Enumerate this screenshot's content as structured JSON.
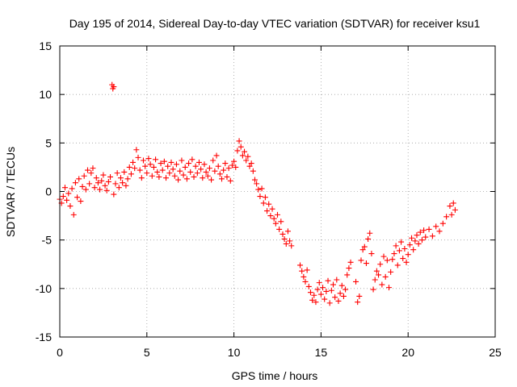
{
  "chart_data": {
    "type": "scatter",
    "title": "Day 195 of 2014, Sidereal Day-to-day VTEC variation (SDTVAR) for receiver ksu1",
    "xlabel": "GPS time / hours",
    "ylabel": "SDTVAR / TECUs",
    "xlim": [
      0,
      25
    ],
    "ylim": [
      -15,
      15
    ],
    "x_ticks": [
      "0",
      "5",
      "10",
      "15",
      "20",
      "25"
    ],
    "y_ticks": [
      "-15",
      "-10",
      "-5",
      "0",
      "5",
      "10",
      "15"
    ],
    "grid": true,
    "marker": "+",
    "color": "#ff0000",
    "series": [
      {
        "name": "SDTVAR",
        "points": [
          [
            0.0,
            -0.8
          ],
          [
            0.1,
            -1.2
          ],
          [
            0.2,
            -0.5
          ],
          [
            0.3,
            0.4
          ],
          [
            0.4,
            -0.9
          ],
          [
            0.5,
            -0.2
          ],
          [
            0.6,
            -1.5
          ],
          [
            0.7,
            0.3
          ],
          [
            0.8,
            -2.4
          ],
          [
            0.9,
            0.9
          ],
          [
            1.0,
            -0.6
          ],
          [
            1.1,
            1.3
          ],
          [
            1.2,
            -1.0
          ],
          [
            1.3,
            0.5
          ],
          [
            1.4,
            1.6
          ],
          [
            1.5,
            0.2
          ],
          [
            1.6,
            2.2
          ],
          [
            1.7,
            0.8
          ],
          [
            1.8,
            1.9
          ],
          [
            1.9,
            2.4
          ],
          [
            2.0,
            0.4
          ],
          [
            2.1,
            1.4
          ],
          [
            2.2,
            0.9
          ],
          [
            2.3,
            0.2
          ],
          [
            2.4,
            1.1
          ],
          [
            2.5,
            1.7
          ],
          [
            2.6,
            0.6
          ],
          [
            2.7,
            0.1
          ],
          [
            2.8,
            1.0
          ],
          [
            2.9,
            1.5
          ],
          [
            3.0,
            11.0
          ],
          [
            3.05,
            10.6
          ],
          [
            3.1,
            10.8
          ],
          [
            3.1,
            -0.3
          ],
          [
            3.2,
            0.8
          ],
          [
            3.3,
            1.9
          ],
          [
            3.4,
            0.4
          ],
          [
            3.5,
            1.4
          ],
          [
            3.6,
            0.9
          ],
          [
            3.7,
            2.0
          ],
          [
            3.8,
            0.6
          ],
          [
            3.9,
            1.3
          ],
          [
            4.0,
            2.5
          ],
          [
            4.1,
            1.8
          ],
          [
            4.2,
            3.0
          ],
          [
            4.3,
            2.4
          ],
          [
            4.4,
            4.3
          ],
          [
            4.5,
            3.5
          ],
          [
            4.6,
            2.2
          ],
          [
            4.7,
            1.4
          ],
          [
            4.8,
            3.2
          ],
          [
            4.9,
            2.6
          ],
          [
            5.0,
            1.9
          ],
          [
            5.1,
            3.4
          ],
          [
            5.2,
            2.8
          ],
          [
            5.3,
            1.6
          ],
          [
            5.4,
            2.5
          ],
          [
            5.5,
            3.3
          ],
          [
            5.6,
            2.0
          ],
          [
            5.7,
            1.5
          ],
          [
            5.8,
            2.9
          ],
          [
            5.9,
            2.2
          ],
          [
            6.0,
            3.1
          ],
          [
            6.1,
            1.4
          ],
          [
            6.2,
            2.6
          ],
          [
            6.3,
            1.9
          ],
          [
            6.4,
            3.0
          ],
          [
            6.5,
            2.3
          ],
          [
            6.6,
            1.6
          ],
          [
            6.7,
            2.8
          ],
          [
            6.8,
            1.2
          ],
          [
            6.9,
            2.1
          ],
          [
            7.0,
            3.2
          ],
          [
            7.1,
            1.7
          ],
          [
            7.2,
            2.5
          ],
          [
            7.3,
            1.3
          ],
          [
            7.4,
            2.9
          ],
          [
            7.5,
            2.0
          ],
          [
            7.6,
            3.3
          ],
          [
            7.7,
            1.5
          ],
          [
            7.8,
            2.6
          ],
          [
            7.9,
            1.9
          ],
          [
            8.0,
            3.0
          ],
          [
            8.1,
            2.3
          ],
          [
            8.2,
            1.4
          ],
          [
            8.3,
            2.8
          ],
          [
            8.4,
            2.0
          ],
          [
            8.5,
            1.6
          ],
          [
            8.6,
            2.4
          ],
          [
            8.7,
            1.2
          ],
          [
            8.8,
            3.2
          ],
          [
            8.9,
            2.1
          ],
          [
            9.0,
            3.7
          ],
          [
            9.1,
            2.6
          ],
          [
            9.2,
            1.8
          ],
          [
            9.3,
            1.3
          ],
          [
            9.4,
            2.2
          ],
          [
            9.5,
            2.9
          ],
          [
            9.6,
            1.5
          ],
          [
            9.7,
            2.4
          ],
          [
            9.8,
            1.1
          ],
          [
            9.9,
            2.7
          ],
          [
            10.0,
            3.1
          ],
          [
            10.1,
            2.5
          ],
          [
            10.2,
            4.2
          ],
          [
            10.3,
            5.2
          ],
          [
            10.4,
            4.6
          ],
          [
            10.5,
            3.7
          ],
          [
            10.6,
            4.1
          ],
          [
            10.7,
            3.2
          ],
          [
            10.8,
            3.6
          ],
          [
            10.9,
            2.6
          ],
          [
            11.0,
            2.9
          ],
          [
            11.1,
            2.1
          ],
          [
            11.2,
            1.2
          ],
          [
            11.3,
            0.8
          ],
          [
            11.4,
            0.2
          ],
          [
            11.5,
            -0.5
          ],
          [
            11.6,
            0.3
          ],
          [
            11.7,
            -1.2
          ],
          [
            11.8,
            -0.6
          ],
          [
            11.9,
            -2.0
          ],
          [
            12.0,
            -1.3
          ],
          [
            12.1,
            -2.5
          ],
          [
            12.2,
            -1.8
          ],
          [
            12.3,
            -2.8
          ],
          [
            12.4,
            -3.3
          ],
          [
            12.5,
            -2.4
          ],
          [
            12.6,
            -3.9
          ],
          [
            12.7,
            -3.1
          ],
          [
            12.8,
            -4.4
          ],
          [
            12.9,
            -4.9
          ],
          [
            13.0,
            -5.4
          ],
          [
            13.1,
            -4.1
          ],
          [
            13.2,
            -5.1
          ],
          [
            13.3,
            -5.6
          ],
          [
            13.8,
            -7.6
          ],
          [
            13.9,
            -8.2
          ],
          [
            14.0,
            -8.8
          ],
          [
            14.1,
            -9.3
          ],
          [
            14.2,
            -8.1
          ],
          [
            14.3,
            -9.8
          ],
          [
            14.4,
            -10.4
          ],
          [
            14.5,
            -11.2
          ],
          [
            14.6,
            -10.7
          ],
          [
            14.7,
            -11.4
          ],
          [
            14.8,
            -10.1
          ],
          [
            14.9,
            -9.4
          ],
          [
            15.0,
            -10.6
          ],
          [
            15.1,
            -9.9
          ],
          [
            15.2,
            -11.1
          ],
          [
            15.3,
            -10.3
          ],
          [
            15.4,
            -9.2
          ],
          [
            15.5,
            -11.5
          ],
          [
            15.6,
            -10.2
          ],
          [
            15.7,
            -9.6
          ],
          [
            15.8,
            -10.9
          ],
          [
            15.9,
            -9.1
          ],
          [
            16.0,
            -11.3
          ],
          [
            16.1,
            -10.5
          ],
          [
            16.2,
            -9.7
          ],
          [
            16.3,
            -10.8
          ],
          [
            16.4,
            -10.1
          ],
          [
            16.5,
            -8.6
          ],
          [
            16.6,
            -7.9
          ],
          [
            16.7,
            -7.3
          ],
          [
            17.0,
            -9.3
          ],
          [
            17.1,
            -11.4
          ],
          [
            17.2,
            -10.8
          ],
          [
            17.3,
            -7.1
          ],
          [
            17.4,
            -6.0
          ],
          [
            17.5,
            -5.7
          ],
          [
            17.6,
            -7.4
          ],
          [
            17.7,
            -4.9
          ],
          [
            17.8,
            -4.3
          ],
          [
            17.9,
            -6.4
          ],
          [
            18.0,
            -10.1
          ],
          [
            18.1,
            -9.1
          ],
          [
            18.2,
            -8.2
          ],
          [
            18.3,
            -8.6
          ],
          [
            18.4,
            -7.5
          ],
          [
            18.5,
            -9.6
          ],
          [
            18.6,
            -6.7
          ],
          [
            18.7,
            -8.8
          ],
          [
            18.8,
            -7.1
          ],
          [
            18.9,
            -9.9
          ],
          [
            19.0,
            -8.3
          ],
          [
            19.1,
            -7.0
          ],
          [
            19.2,
            -6.4
          ],
          [
            19.3,
            -5.6
          ],
          [
            19.4,
            -7.6
          ],
          [
            19.5,
            -6.1
          ],
          [
            19.6,
            -5.2
          ],
          [
            19.7,
            -6.9
          ],
          [
            19.8,
            -5.9
          ],
          [
            19.9,
            -7.3
          ],
          [
            20.0,
            -6.5
          ],
          [
            20.1,
            -5.5
          ],
          [
            20.2,
            -4.8
          ],
          [
            20.3,
            -6.0
          ],
          [
            20.4,
            -5.1
          ],
          [
            20.5,
            -4.5
          ],
          [
            20.6,
            -5.4
          ],
          [
            20.7,
            -4.2
          ],
          [
            20.8,
            -5.0
          ],
          [
            20.9,
            -4.0
          ],
          [
            21.0,
            -4.7
          ],
          [
            21.2,
            -3.9
          ],
          [
            21.4,
            -4.6
          ],
          [
            21.6,
            -3.6
          ],
          [
            21.8,
            -4.1
          ],
          [
            22.0,
            -3.3
          ],
          [
            22.2,
            -2.6
          ],
          [
            22.4,
            -1.5
          ],
          [
            22.5,
            -2.4
          ],
          [
            22.6,
            -1.2
          ],
          [
            22.7,
            -1.9
          ]
        ]
      }
    ]
  }
}
